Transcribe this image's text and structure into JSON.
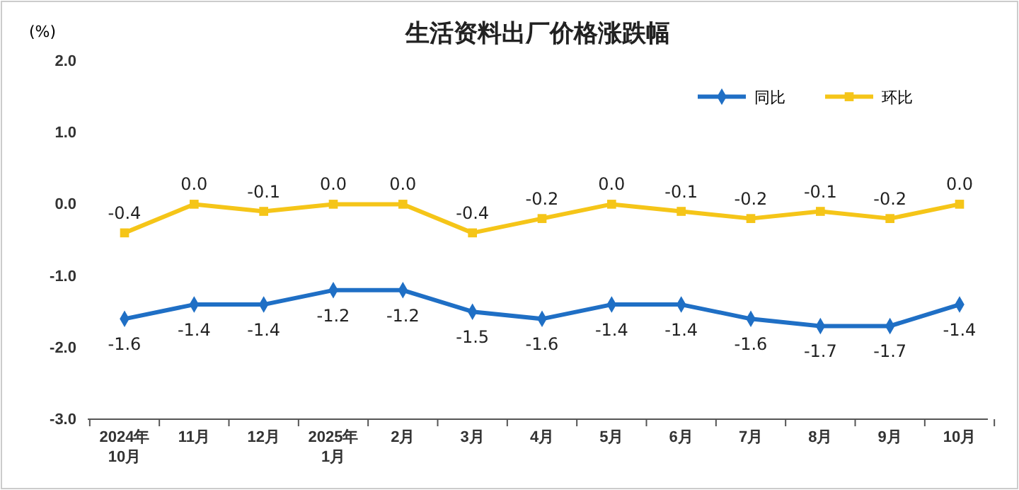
{
  "chart_data": {
    "type": "line",
    "title": "生活资料出厂价格涨跌幅",
    "ylabel": "(%)",
    "categories": [
      "2024年\n10月",
      "11月",
      "12月",
      "2025年\n1月",
      "2月",
      "3月",
      "4月",
      "5月",
      "6月",
      "7月",
      "8月",
      "9月",
      "10月"
    ],
    "series": [
      {
        "name": "同比",
        "color": "#1f6fc5",
        "marker": "diamond",
        "values": [
          -1.6,
          -1.4,
          -1.4,
          -1.2,
          -1.2,
          -1.5,
          -1.6,
          -1.4,
          -1.4,
          -1.6,
          -1.7,
          -1.7,
          -1.4
        ],
        "value_labels": [
          "-1.6",
          "-1.4",
          "-1.4",
          "-1.2",
          "-1.2",
          "-1.5",
          "-1.6",
          "-1.4",
          "-1.4",
          "-1.6",
          "-1.7",
          "-1.7",
          "-1.4"
        ]
      },
      {
        "name": "环比",
        "color": "#f5c518",
        "marker": "square",
        "values": [
          -0.4,
          0.0,
          -0.1,
          0.0,
          0.0,
          -0.4,
          -0.2,
          0.0,
          -0.1,
          -0.2,
          -0.1,
          -0.2,
          0.0
        ],
        "value_labels": [
          "-0.4",
          "0.0",
          "-0.1",
          "0.0",
          "0.0",
          "-0.4",
          "-0.2",
          "0.0",
          "-0.1",
          "-0.2",
          "-0.1",
          "-0.2",
          "0.0"
        ]
      }
    ],
    "ylim": [
      -3,
      2
    ],
    "yticks": [
      {
        "value": -3,
        "label": "-3.0"
      },
      {
        "value": -2,
        "label": "-2.0"
      },
      {
        "value": -1,
        "label": "-1.0"
      },
      {
        "value": 0,
        "label": "0.0"
      },
      {
        "value": 1,
        "label": "1.0"
      },
      {
        "value": 2,
        "label": "2.0"
      }
    ],
    "legend": "top right",
    "line_style": "solid"
  }
}
